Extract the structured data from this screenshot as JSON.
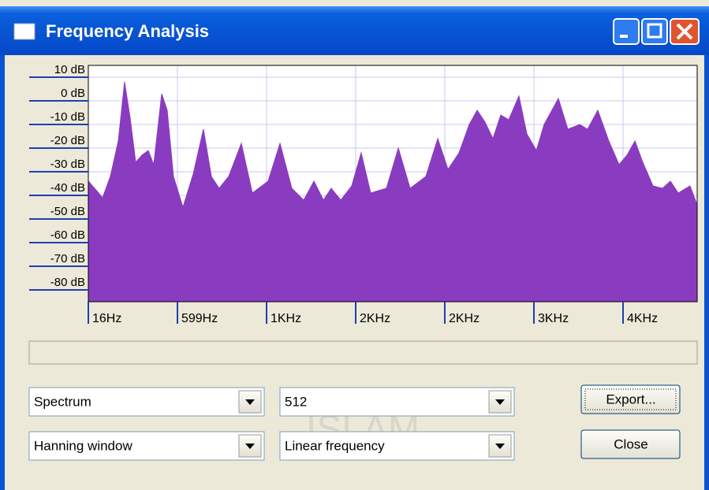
{
  "window": {
    "title": "Frequency Analysis"
  },
  "chart_data": {
    "type": "area",
    "color": "#8a3cc0",
    "grid": true,
    "x": [
      16,
      57,
      109,
      160,
      212,
      253,
      289,
      326,
      367,
      408,
      444,
      496,
      532,
      573,
      635,
      702,
      769,
      821,
      872,
      934,
      1017,
      1089,
      1192,
      1270,
      1347,
      1425,
      1492,
      1554,
      1605,
      1667,
      1739,
      1801,
      1863,
      1966,
      2044,
      2121,
      2224,
      2302,
      2369,
      2441,
      2508,
      2560,
      2611,
      2663,
      2714,
      2766,
      2833,
      2885,
      2947,
      2998,
      3091,
      3153,
      3231,
      3282,
      3349,
      3421,
      3488,
      3540,
      3592,
      3643,
      3710,
      3772,
      3824,
      3875,
      3952,
      3999
    ],
    "values": [
      -34,
      -37,
      -41,
      -32,
      -17,
      8,
      -7,
      -26,
      -23,
      -21,
      -27,
      3,
      -4,
      -32,
      -45,
      -31,
      -12,
      -32,
      -37,
      -32,
      -18,
      -39,
      -34,
      -18,
      -37,
      -42,
      -34,
      -42,
      -37,
      -42,
      -36,
      -22,
      -39,
      -37,
      -20,
      -37,
      -32,
      -16,
      -29,
      -22,
      -10,
      -4,
      -9,
      -16,
      -6,
      -8,
      2,
      -14,
      -21,
      -10,
      1,
      -12,
      -10,
      -12,
      -4,
      -17,
      -27,
      -23,
      -17,
      -26,
      -36,
      -37,
      -34,
      -39,
      -36,
      -44
    ],
    "xlim": [
      16,
      3999
    ],
    "ylim": [
      -85,
      15
    ],
    "yticks": [
      {
        "value": 10,
        "label": "10 dB"
      },
      {
        "value": 0,
        "label": "0 dB"
      },
      {
        "value": -10,
        "label": "-10 dB"
      },
      {
        "value": -20,
        "label": "-20 dB"
      },
      {
        "value": -30,
        "label": "-30 dB"
      },
      {
        "value": -40,
        "label": "-40 dB"
      },
      {
        "value": -50,
        "label": "-50 dB"
      },
      {
        "value": -60,
        "label": "-60 dB"
      },
      {
        "value": -70,
        "label": "-70 dB"
      },
      {
        "value": -80,
        "label": "-80 dB"
      }
    ],
    "xticks": [
      {
        "value": 16,
        "label": "16Hz"
      },
      {
        "value": 599,
        "label": "599Hz"
      },
      {
        "value": 1182,
        "label": "1KHz"
      },
      {
        "value": 1765,
        "label": "2KHz"
      },
      {
        "value": 2348,
        "label": "2KHz"
      },
      {
        "value": 2931,
        "label": "3KHz"
      },
      {
        "value": 3514,
        "label": "4KHz"
      }
    ]
  },
  "controls": {
    "algorithm": "Spectrum",
    "size": "512",
    "window_function": "Hanning window",
    "axis": "Linear frequency"
  },
  "buttons": {
    "export": "Export...",
    "close": "Close"
  },
  "watermark": "ISLAM"
}
